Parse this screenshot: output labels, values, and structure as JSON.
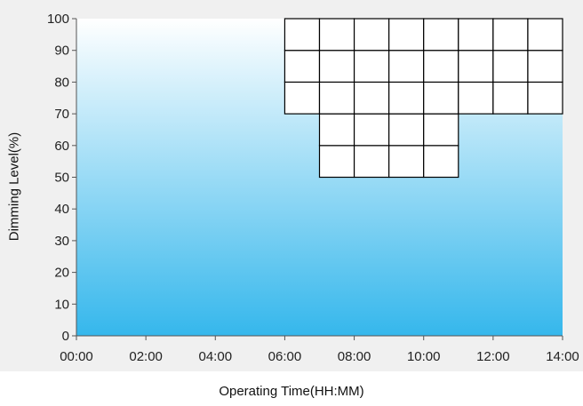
{
  "chart_data": {
    "type": "area",
    "title": "",
    "xlabel": "Operating Time(HH:MM)",
    "ylabel": "Dimming Level(%)",
    "x_ticks": [
      "00:00",
      "02:00",
      "04:00",
      "06:00",
      "08:00",
      "10:00",
      "12:00",
      "14:00"
    ],
    "y_ticks": [
      0,
      10,
      20,
      30,
      40,
      50,
      60,
      70,
      80,
      90,
      100
    ],
    "xlim": [
      0,
      14
    ],
    "ylim": [
      0,
      100
    ],
    "x_unit": "hours",
    "grid": false,
    "series": [
      {
        "x": [
          0,
          6,
          6,
          7,
          7,
          11,
          11,
          12,
          12,
          14
        ],
        "y": [
          100,
          100,
          70,
          70,
          50,
          50,
          70,
          70,
          70,
          70
        ]
      }
    ],
    "fill_gradient": {
      "top": "#ffffff",
      "bottom": "#35b7ec"
    }
  }
}
